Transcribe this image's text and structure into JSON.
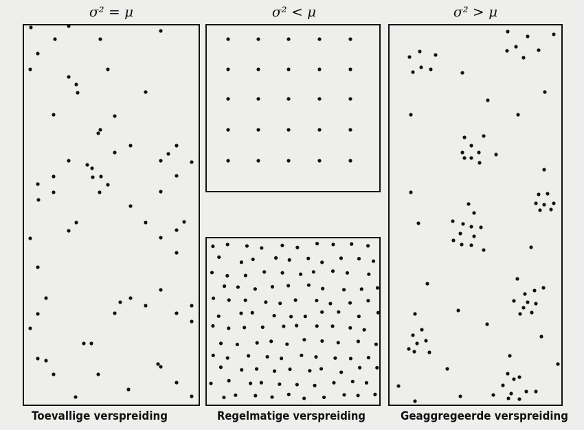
{
  "titles": [
    "σ² = μ",
    "σ² < μ",
    "σ² > μ"
  ],
  "captions": [
    "Toevallige verspreiding",
    "Regelmatige verspreiding",
    "Geaggregeerde verspreiding"
  ]
}
